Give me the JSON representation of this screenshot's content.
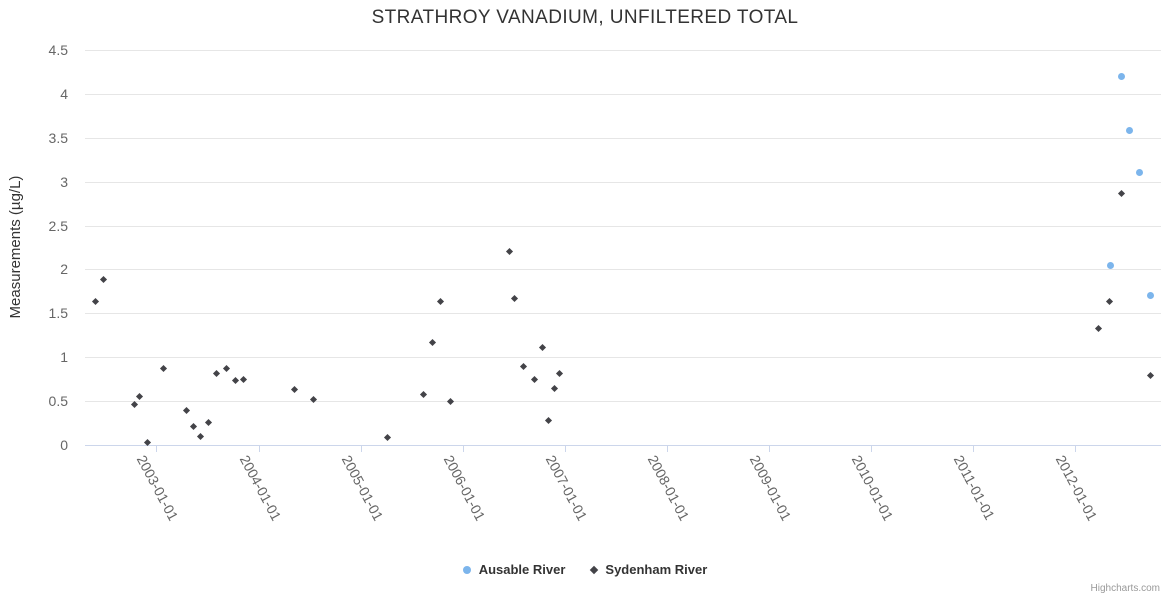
{
  "credit": "Highcharts.com",
  "colors": {
    "background": "#ffffff",
    "grid": "#e6e6e6",
    "axis_line": "#ccd6eb",
    "tick": "#ccd6eb",
    "axis_label": "#666666",
    "text": "#333333",
    "credit": "#999999",
    "series_ausable": "#7cb5ec",
    "series_sydenham": "#434348"
  },
  "chart_data": {
    "type": "scatter",
    "title": "STRATHROY VANADIUM, UNFILTERED TOTAL",
    "xlabel": "",
    "ylabel": "Measurements (µg/L)",
    "ylim": [
      0,
      4.5
    ],
    "xlim_years": [
      2002.3,
      2012.84
    ],
    "grid": true,
    "legend_position": "bottom-center",
    "y_tick_values": [
      0,
      0.5,
      1,
      1.5,
      2,
      2.5,
      3,
      3.5,
      4,
      4.5
    ],
    "x_ticks": [
      {
        "year": 2003,
        "label": "2003-01-01"
      },
      {
        "year": 2004,
        "label": "2004-01-01"
      },
      {
        "year": 2005,
        "label": "2005-01-01"
      },
      {
        "year": 2006,
        "label": "2006-01-01"
      },
      {
        "year": 2007,
        "label": "2007-01-01"
      },
      {
        "year": 2008,
        "label": "2008-01-01"
      },
      {
        "year": 2009,
        "label": "2009-01-01"
      },
      {
        "year": 2010,
        "label": "2010-01-01"
      },
      {
        "year": 2011,
        "label": "2011-01-01"
      },
      {
        "year": 2012,
        "label": "2012-01-01"
      }
    ],
    "series": [
      {
        "name": "Ausable River",
        "marker": "circle",
        "color": "#7cb5ec",
        "points": [
          [
            2012.35,
            2.05
          ],
          [
            2012.45,
            4.2
          ],
          [
            2012.53,
            3.58
          ],
          [
            2012.63,
            3.1
          ],
          [
            2012.74,
            1.7
          ]
        ]
      },
      {
        "name": "Sydenham River",
        "marker": "diamond",
        "color": "#434348",
        "points": [
          [
            2002.4,
            1.64
          ],
          [
            2002.48,
            1.88
          ],
          [
            2002.78,
            0.46
          ],
          [
            2002.83,
            0.55
          ],
          [
            2002.91,
            0.03
          ],
          [
            2003.07,
            0.87
          ],
          [
            2003.29,
            0.39
          ],
          [
            2003.36,
            0.21
          ],
          [
            2003.43,
            0.1
          ],
          [
            2003.51,
            0.26
          ],
          [
            2003.59,
            0.81
          ],
          [
            2003.69,
            0.87
          ],
          [
            2003.77,
            0.73
          ],
          [
            2003.85,
            0.75
          ],
          [
            2004.35,
            0.63
          ],
          [
            2004.54,
            0.52
          ],
          [
            2005.26,
            0.08
          ],
          [
            2005.62,
            0.58
          ],
          [
            2005.7,
            1.17
          ],
          [
            2005.78,
            1.63
          ],
          [
            2005.88,
            0.5
          ],
          [
            2006.46,
            2.21
          ],
          [
            2006.51,
            1.67
          ],
          [
            2006.6,
            0.89
          ],
          [
            2006.7,
            0.75
          ],
          [
            2006.78,
            1.11
          ],
          [
            2006.84,
            0.28
          ],
          [
            2006.9,
            0.64
          ],
          [
            2006.95,
            0.81
          ],
          [
            2012.23,
            1.33
          ],
          [
            2012.34,
            1.63
          ],
          [
            2012.45,
            2.87
          ],
          [
            2012.74,
            0.79
          ]
        ]
      }
    ]
  }
}
